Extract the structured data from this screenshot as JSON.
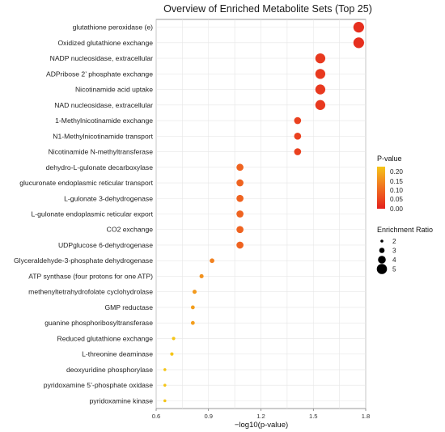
{
  "chart_data": {
    "type": "scatter",
    "title": "Overview of Enriched Metabolite Sets (Top 25)",
    "xlabel": "−log10(p-value)",
    "ylabel": "",
    "xlim": [
      0.6,
      1.8
    ],
    "xticks": [
      "0.6",
      "0.9",
      "1.2",
      "1.5",
      "1.8"
    ],
    "grid": true,
    "legend_placement": "right",
    "colorbar": {
      "title": "P-value",
      "ticks": [
        "0.20",
        "0.15",
        "0.10",
        "0.05",
        "0.00"
      ],
      "colors": [
        "#f5c518",
        "#f39a1e",
        "#f07021",
        "#ec4a1f",
        "#e3211e"
      ]
    },
    "size_legend": {
      "title": "Enrichment Ratio",
      "values": [
        2,
        3,
        4,
        5
      ]
    },
    "categories": [
      "glutathione peroxidase (e)",
      "Oxidized glutathione exchange",
      "NADP nucleosidase, extracellular",
      "ADPribose 2’ phosphate exchange",
      "Nicotinamide acid uptake",
      "NAD nucleosidase, extracellular",
      "1-Methylnicotinamide exchange",
      "N1-Methylnicotinamide transport",
      "Nicotinamide N-methyltransferase",
      "dehydro-L-gulonate decarboxylase",
      "glucuronate endoplasmic reticular transport",
      "L-gulonate 3-dehydrogenase",
      "L-gulonate endoplasmic reticular export",
      "CO2 exchange",
      "UDPglucose 6-dehydrogenase",
      "Glyceraldehyde-3-phosphate dehydrogenase",
      "ATP synthase (four protons for one ATP)",
      "methenyltetrahydrofolate cyclohydrolase",
      "GMP reductase",
      "guanine phosphoribosyltransferase",
      "Reduced glutathione exchange",
      "L-threonine deaminase",
      "deoxyuridine phosphorylase",
      "pyridoxamine 5’-phosphate oxidase",
      "pyridoxamine kinase"
    ],
    "x": [
      1.76,
      1.76,
      1.54,
      1.54,
      1.54,
      1.54,
      1.41,
      1.41,
      1.41,
      1.08,
      1.08,
      1.08,
      1.08,
      1.08,
      1.08,
      0.92,
      0.86,
      0.82,
      0.81,
      0.81,
      0.7,
      0.69,
      0.65,
      0.65,
      0.65
    ],
    "p_value": [
      0.017,
      0.017,
      0.029,
      0.029,
      0.029,
      0.029,
      0.039,
      0.039,
      0.039,
      0.083,
      0.083,
      0.083,
      0.083,
      0.083,
      0.083,
      0.12,
      0.14,
      0.15,
      0.155,
      0.155,
      0.2,
      0.205,
      0.224,
      0.224,
      0.224
    ],
    "enrichment_ratio": [
      5.2,
      5.2,
      4.9,
      4.9,
      4.9,
      4.9,
      3.7,
      3.7,
      3.7,
      3.7,
      3.7,
      3.7,
      3.7,
      3.7,
      3.7,
      2.7,
      2.5,
      2.5,
      2.4,
      2.4,
      2.2,
      2.2,
      2.0,
      2.0,
      2.0
    ]
  }
}
